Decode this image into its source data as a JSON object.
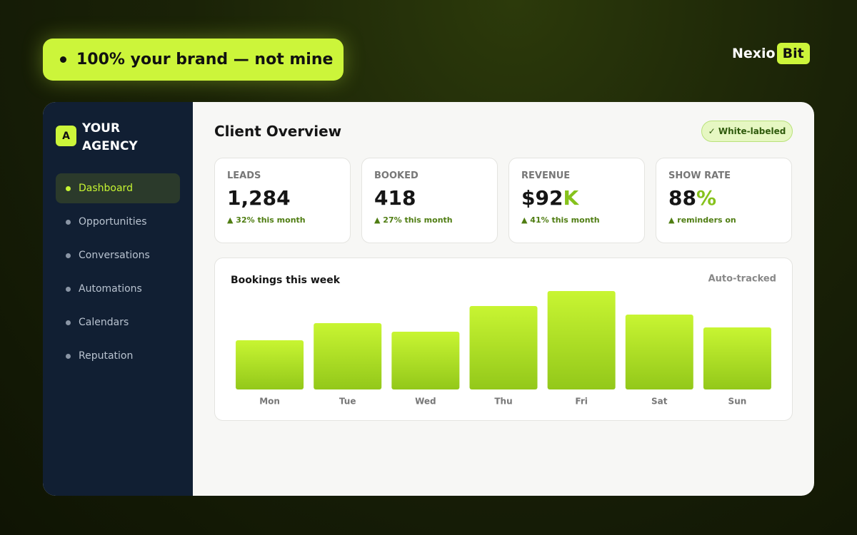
{
  "badge": "100% your brand — not mine",
  "logo": {
    "name": "Nexio",
    "accent": "Bit"
  },
  "sidebar": {
    "avatar": "A",
    "agency": "YOUR AGENCY",
    "nav": [
      "Dashboard",
      "Opportunities",
      "Conversations",
      "Automations",
      "Calendars",
      "Reputation"
    ]
  },
  "main": {
    "title": "Client Overview",
    "tag": "✓ White-labeled",
    "cards": [
      {
        "label": "LEADS",
        "value": "1,284",
        "note": "▲ 32% this month"
      },
      {
        "label": "BOOKED",
        "value": "418",
        "note": "▲ 27% this month"
      },
      {
        "label": "REVENUE",
        "value": "$92",
        "suffix": "K",
        "note": "▲ 41% this month"
      },
      {
        "label": "SHOW RATE",
        "value": "88",
        "suffix": "%",
        "note": "▲ reminders on"
      }
    ]
  },
  "chart_data": {
    "type": "bar",
    "title": "Bookings this week",
    "subtitle": "Auto-tracked",
    "categories": [
      "Mon",
      "Tue",
      "Wed",
      "Thu",
      "Fri",
      "Sat",
      "Sun"
    ],
    "values": [
      69,
      93,
      81,
      117,
      138,
      105,
      87
    ]
  }
}
